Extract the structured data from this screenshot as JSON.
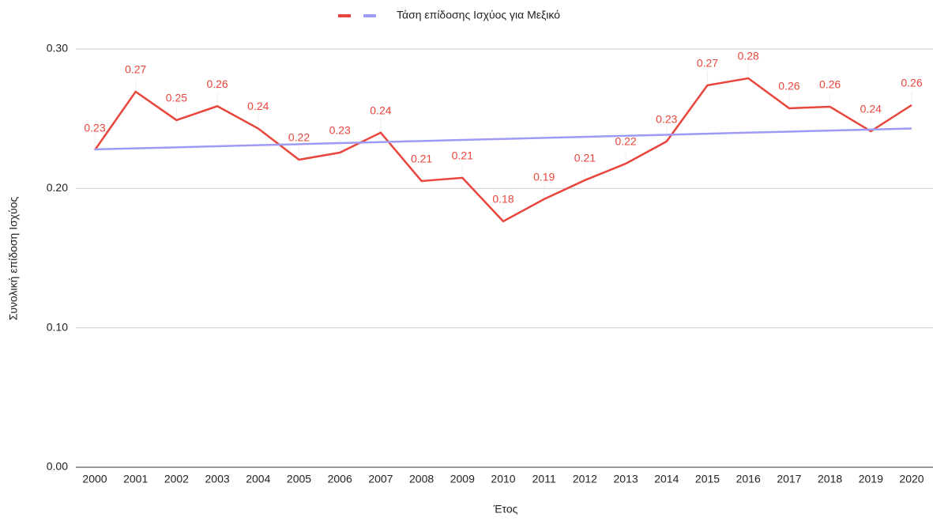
{
  "chart_data": {
    "type": "line",
    "x_label": "Έτος",
    "y_label": "Συνολική επίδοση Ισχύος",
    "categories": [
      "2000",
      "2001",
      "2002",
      "2003",
      "2004",
      "2005",
      "2006",
      "2007",
      "2008",
      "2009",
      "2010",
      "2011",
      "2012",
      "2013",
      "2014",
      "2015",
      "2016",
      "2017",
      "2018",
      "2019",
      "2020"
    ],
    "series": [
      {
        "color": "#e8453c",
        "values": [
          0.2275,
          0.2694,
          0.249,
          0.259,
          0.243,
          0.2206,
          0.2257,
          0.24,
          0.2053,
          0.2076,
          0.1764,
          0.1923,
          0.2059,
          0.2178,
          0.2337,
          0.274,
          0.279,
          0.2575,
          0.2586,
          0.241,
          0.2598
        ],
        "value_labels": [
          "0.23",
          "0.27",
          "0.25",
          "0.26",
          "0.24",
          "0.22",
          "0.23",
          "0.24",
          "0.21",
          "0.21",
          "0.18",
          "0.19",
          "0.21",
          "0.22",
          "0.23",
          "0.27",
          "0.28",
          "0.26",
          "0.26",
          "0.24",
          "0.26"
        ]
      },
      {
        "name": "Τάση επίδοσης Ισχύος για Μεξικό",
        "color": "#9e9bf5",
        "values": [
          0.228,
          0.22875,
          0.2295,
          0.23025,
          0.231,
          0.23175,
          0.2325,
          0.23325,
          0.234,
          0.23475,
          0.2355,
          0.23625,
          0.237,
          0.23775,
          0.2385,
          0.23925,
          0.24,
          0.24075,
          0.2415,
          0.24225,
          0.243
        ]
      }
    ],
    "ylim": [
      0,
      0.3
    ],
    "yticks": [
      {
        "value": 0,
        "label": "0.00"
      },
      {
        "value": 0.1,
        "label": "0.10"
      },
      {
        "value": 0.2,
        "label": "0.20"
      },
      {
        "value": 0.3,
        "label": "0.30"
      }
    ],
    "grid": true,
    "legend": "top"
  }
}
